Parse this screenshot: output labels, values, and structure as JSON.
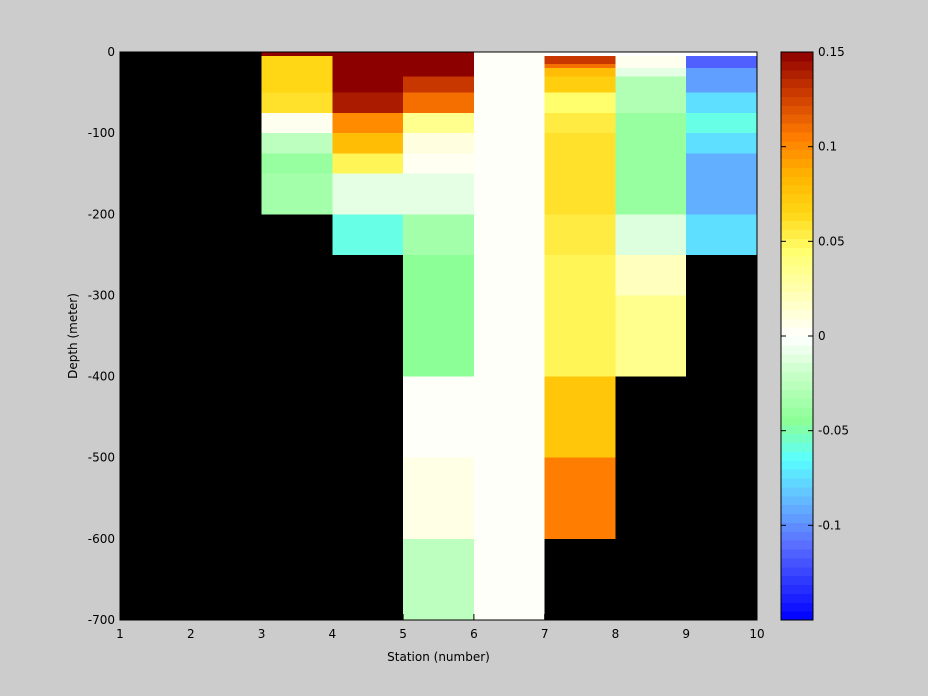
{
  "chart_data": {
    "type": "heatmap",
    "title": "",
    "xlabel": "Station (number)",
    "ylabel": "Depth (meter)",
    "xlim": [
      1,
      10
    ],
    "ylim": [
      -700,
      0
    ],
    "x_ticks": [
      "1",
      "2",
      "3",
      "4",
      "5",
      "6",
      "7",
      "8",
      "9",
      "10"
    ],
    "y_ticks": [
      {
        "value": 0,
        "label": "0"
      },
      {
        "value": -100,
        "label": "-100"
      },
      {
        "value": -200,
        "label": "-200"
      },
      {
        "value": -300,
        "label": "-300"
      },
      {
        "value": -400,
        "label": "-400"
      },
      {
        "value": -500,
        "label": "-500"
      },
      {
        "value": -600,
        "label": "-600"
      },
      {
        "value": -700,
        "label": "-700"
      }
    ],
    "colorbar": {
      "colormap": "jet-like, white at zero",
      "clim": [
        -0.15,
        0.15
      ],
      "ticks": [
        {
          "value": 0.15,
          "label": "0.15"
        },
        {
          "value": 0.1,
          "label": "0.1"
        },
        {
          "value": 0.05,
          "label": "0.05"
        },
        {
          "value": 0,
          "label": "0"
        },
        {
          "value": -0.05,
          "label": "-0.05"
        },
        {
          "value": -0.1,
          "label": "-0.1"
        }
      ]
    },
    "missing_color": "#000000",
    "cells": [
      {
        "x": [
          3,
          4
        ],
        "y": [
          -5,
          0
        ],
        "value": 0.15
      },
      {
        "x": [
          3,
          4
        ],
        "y": [
          -50,
          -5
        ],
        "value": 0.065
      },
      {
        "x": [
          3,
          4
        ],
        "y": [
          -75,
          -50
        ],
        "value": 0.06
      },
      {
        "x": [
          3,
          4
        ],
        "y": [
          -100,
          -75
        ],
        "value": 0.005
      },
      {
        "x": [
          3,
          4
        ],
        "y": [
          -125,
          -100
        ],
        "value": -0.025
      },
      {
        "x": [
          3,
          4
        ],
        "y": [
          -150,
          -125
        ],
        "value": -0.04
      },
      {
        "x": [
          3,
          4
        ],
        "y": [
          -200,
          -150
        ],
        "value": -0.035
      },
      {
        "x": [
          4,
          5
        ],
        "y": [
          -5,
          0
        ],
        "value": 0.15
      },
      {
        "x": [
          4,
          5
        ],
        "y": [
          -50,
          -5
        ],
        "value": 0.15
      },
      {
        "x": [
          4,
          5
        ],
        "y": [
          -75,
          -50
        ],
        "value": 0.14
      },
      {
        "x": [
          4,
          5
        ],
        "y": [
          -100,
          -75
        ],
        "value": 0.1
      },
      {
        "x": [
          4,
          5
        ],
        "y": [
          -125,
          -100
        ],
        "value": 0.08
      },
      {
        "x": [
          4,
          5
        ],
        "y": [
          -150,
          -125
        ],
        "value": 0.05
      },
      {
        "x": [
          4,
          5
        ],
        "y": [
          -200,
          -150
        ],
        "value": -0.01
      },
      {
        "x": [
          4,
          5
        ],
        "y": [
          -250,
          -200
        ],
        "value": -0.06
      },
      {
        "x": [
          5,
          6
        ],
        "y": [
          -5,
          0
        ],
        "value": 0.15
      },
      {
        "x": [
          5,
          6
        ],
        "y": [
          -30,
          -5
        ],
        "value": 0.15
      },
      {
        "x": [
          5,
          6
        ],
        "y": [
          -50,
          -30
        ],
        "value": 0.13
      },
      {
        "x": [
          5,
          6
        ],
        "y": [
          -75,
          -50
        ],
        "value": 0.11
      },
      {
        "x": [
          5,
          6
        ],
        "y": [
          -100,
          -75
        ],
        "value": 0.035
      },
      {
        "x": [
          5,
          6
        ],
        "y": [
          -125,
          -100
        ],
        "value": 0.01
      },
      {
        "x": [
          5,
          6
        ],
        "y": [
          -150,
          -125
        ],
        "value": 0.004
      },
      {
        "x": [
          5,
          6
        ],
        "y": [
          -200,
          -150
        ],
        "value": -0.01
      },
      {
        "x": [
          5,
          6
        ],
        "y": [
          -250,
          -200
        ],
        "value": -0.035
      },
      {
        "x": [
          5,
          6
        ],
        "y": [
          -400,
          -250
        ],
        "value": -0.045
      },
      {
        "x": [
          5,
          6
        ],
        "y": [
          -500,
          -400
        ],
        "value": 0.002
      },
      {
        "x": [
          5,
          6
        ],
        "y": [
          -600,
          -500
        ],
        "value": 0.008
      },
      {
        "x": [
          5,
          6
        ],
        "y": [
          -700,
          -600
        ],
        "value": -0.025
      },
      {
        "x": [
          6,
          7
        ],
        "y": [
          -700,
          0
        ],
        "value": 0.002
      },
      {
        "x": [
          7,
          8
        ],
        "y": [
          -5,
          0
        ],
        "value": 0.0
      },
      {
        "x": [
          7,
          8
        ],
        "y": [
          -15,
          -5
        ],
        "value": 0.13
      },
      {
        "x": [
          7,
          8
        ],
        "y": [
          -20,
          -15
        ],
        "value": 0.11
      },
      {
        "x": [
          7,
          8
        ],
        "y": [
          -30,
          -20
        ],
        "value": 0.08
      },
      {
        "x": [
          7,
          8
        ],
        "y": [
          -50,
          -30
        ],
        "value": 0.07
      },
      {
        "x": [
          7,
          8
        ],
        "y": [
          -75,
          -50
        ],
        "value": 0.045
      },
      {
        "x": [
          7,
          8
        ],
        "y": [
          -100,
          -75
        ],
        "value": 0.055
      },
      {
        "x": [
          7,
          8
        ],
        "y": [
          -125,
          -100
        ],
        "value": 0.06
      },
      {
        "x": [
          7,
          8
        ],
        "y": [
          -200,
          -125
        ],
        "value": 0.06
      },
      {
        "x": [
          7,
          8
        ],
        "y": [
          -250,
          -200
        ],
        "value": 0.055
      },
      {
        "x": [
          7,
          8
        ],
        "y": [
          -300,
          -250
        ],
        "value": 0.05
      },
      {
        "x": [
          7,
          8
        ],
        "y": [
          -400,
          -300
        ],
        "value": 0.05
      },
      {
        "x": [
          7,
          8
        ],
        "y": [
          -500,
          -400
        ],
        "value": 0.075
      },
      {
        "x": [
          7,
          8
        ],
        "y": [
          -600,
          -500
        ],
        "value": 0.105
      },
      {
        "x": [
          8,
          9
        ],
        "y": [
          -5,
          0
        ],
        "value": 0.0
      },
      {
        "x": [
          8,
          9
        ],
        "y": [
          -20,
          -5
        ],
        "value": 0.005
      },
      {
        "x": [
          8,
          9
        ],
        "y": [
          -30,
          -20
        ],
        "value": -0.01
      },
      {
        "x": [
          8,
          9
        ],
        "y": [
          -75,
          -30
        ],
        "value": -0.03
      },
      {
        "x": [
          8,
          9
        ],
        "y": [
          -200,
          -75
        ],
        "value": -0.04
      },
      {
        "x": [
          8,
          9
        ],
        "y": [
          -250,
          -200
        ],
        "value": -0.012
      },
      {
        "x": [
          8,
          9
        ],
        "y": [
          -300,
          -250
        ],
        "value": 0.02
      },
      {
        "x": [
          8,
          9
        ],
        "y": [
          -400,
          -300
        ],
        "value": 0.035
      },
      {
        "x": [
          9,
          10
        ],
        "y": [
          -5,
          0
        ],
        "value": 0.0
      },
      {
        "x": [
          9,
          10
        ],
        "y": [
          -20,
          -5
        ],
        "value": -0.115
      },
      {
        "x": [
          9,
          10
        ],
        "y": [
          -50,
          -20
        ],
        "value": -0.095
      },
      {
        "x": [
          9,
          10
        ],
        "y": [
          -75,
          -50
        ],
        "value": -0.075
      },
      {
        "x": [
          9,
          10
        ],
        "y": [
          -100,
          -75
        ],
        "value": -0.06
      },
      {
        "x": [
          9,
          10
        ],
        "y": [
          -125,
          -100
        ],
        "value": -0.075
      },
      {
        "x": [
          9,
          10
        ],
        "y": [
          -200,
          -125
        ],
        "value": -0.09
      },
      {
        "x": [
          9,
          10
        ],
        "y": [
          -250,
          -200
        ],
        "value": -0.075
      }
    ]
  }
}
